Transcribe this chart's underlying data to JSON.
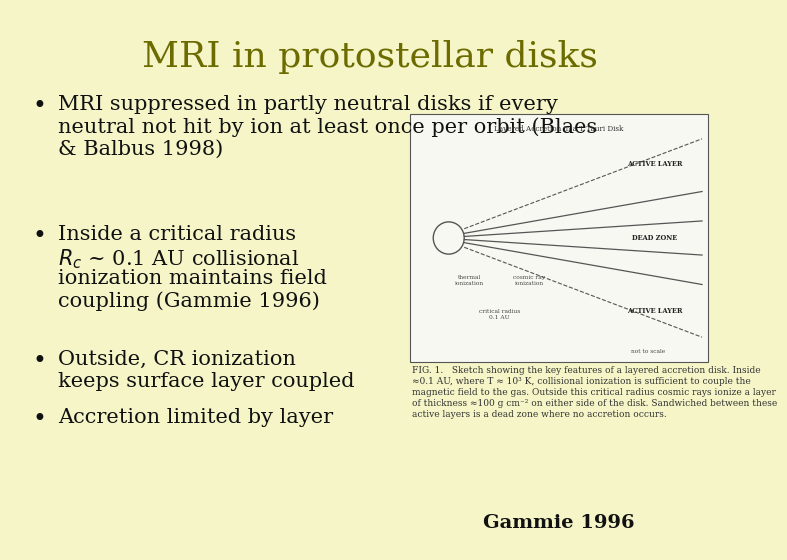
{
  "background_color": "#f5f5c8",
  "title": "MRI in protostellar disks",
  "title_color": "#6b6b00",
  "title_fontsize": 26,
  "bullet_color": "#111111",
  "bullet_fontsize": 15,
  "bullet1": "MRI suppressed in partly neutral disks if every\nneutral not hit by ion at least once per orbit (Blaes\n& Balbus 1998)",
  "bullet2_line1": "Inside a critical radius",
  "bullet2_line2": "$R_c$ ~ 0.1 AU collisional",
  "bullet2_line3": "ionization maintains field",
  "bullet2_line4": "coupling (Gammie 1996)",
  "bullet3": "Outside, CR ionization\nkeeps surface layer coupled",
  "bullet4": "Accretion limited by layer",
  "caption_text": "Gammie 1996",
  "caption_fontsize": 14,
  "diag_title": "Layered Accretion in a T Tauri Disk",
  "diag_label_active": "ACTIVE LAYER",
  "diag_label_dead": "DEAD ZONE",
  "diag_label_thermal": "thermal\nionization",
  "diag_label_cosmic": "cosmic ray\nionization",
  "diag_label_critical": "critical radius\n0.1 AU",
  "diag_label_scale": "not to scale",
  "fig_caption": "FIG. 1.   Sketch showing the key features of a layered accretion disk. Inside\n≈0.1 AU, where T ≈ 10³ K, collisional ionization is sufficient to couple the\nmagnetic field to the gas. Outside this critical radius cosmic rays ionize a layer\nof thickness ≈100 g cm⁻² on either side of the disk. Sandwiched between these\nactive layers is a dead zone where no accretion occurs.",
  "fig_caption_fontsize": 6.5
}
